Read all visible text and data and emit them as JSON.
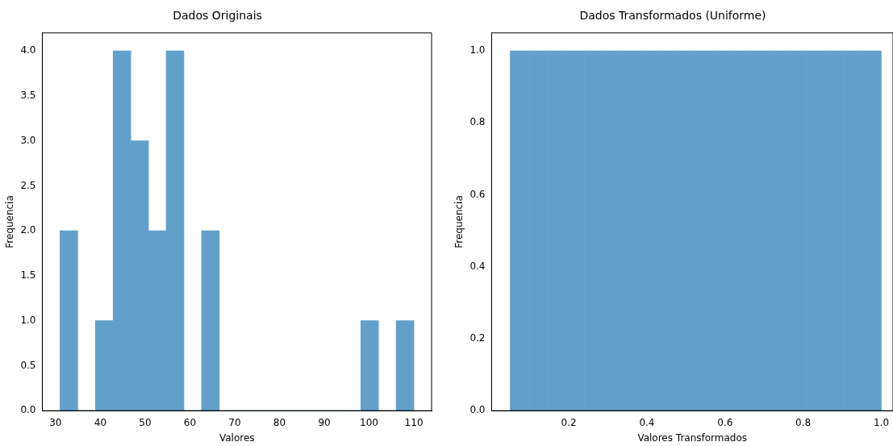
{
  "chart_data": [
    {
      "type": "histogram",
      "title": "Dados Originais",
      "xlabel": "Valores",
      "ylabel": "Frequencia",
      "color": "#62a0ca",
      "bins": [
        31,
        34.95,
        38.9,
        42.85,
        46.8,
        50.75,
        54.7,
        58.65,
        62.6,
        66.55,
        70.5,
        74.45,
        78.4,
        82.35,
        86.3,
        90.25,
        94.2,
        98.15,
        102.1,
        106.05,
        110
      ],
      "values": [
        2,
        0,
        1,
        4,
        3,
        2,
        4,
        0,
        2,
        0,
        0,
        0,
        0,
        0,
        0,
        0,
        0,
        1,
        0,
        1
      ],
      "xlim": [
        27.05,
        113.95
      ],
      "xticks": [
        30,
        40,
        50,
        60,
        70,
        80,
        90,
        100,
        110
      ],
      "ylim": [
        0,
        4.2
      ],
      "yticks": [
        {
          "value": 0,
          "label": "0.0"
        },
        {
          "value": 0.5,
          "label": "0.5"
        },
        {
          "value": 1,
          "label": "1.0"
        },
        {
          "value": 1.5,
          "label": "1.5"
        },
        {
          "value": 2,
          "label": "2.0"
        },
        {
          "value": 2.5,
          "label": "2.5"
        },
        {
          "value": 3,
          "label": "3.0"
        },
        {
          "value": 3.5,
          "label": "3.5"
        },
        {
          "value": 4,
          "label": "4.0"
        }
      ]
    },
    {
      "type": "histogram",
      "title": "Dados Transformados (Uniforme)",
      "xlabel": "Valores Transformados",
      "ylabel": "Frequencia",
      "color": "#62a0ca",
      "bins": [
        0.05,
        0.0975,
        0.145,
        0.1925,
        0.24,
        0.2875,
        0.335,
        0.3825,
        0.43,
        0.4775,
        0.525,
        0.5725,
        0.62,
        0.6675,
        0.715,
        0.7625,
        0.81,
        0.8575,
        0.905,
        0.9525,
        1.0
      ],
      "values": [
        1,
        1,
        1,
        1,
        1,
        1,
        1,
        1,
        1,
        1,
        1,
        1,
        1,
        1,
        1,
        1,
        1,
        1,
        1,
        1
      ],
      "xlim": [
        0.0025,
        1.03
      ],
      "xticks": [
        0.2,
        0.4,
        0.6,
        0.8,
        {
          "value": 1,
          "label": "1.0"
        }
      ],
      "ylim": [
        0,
        1.05
      ],
      "yticks": [
        {
          "value": 0,
          "label": "0.0"
        },
        {
          "value": 0.2,
          "label": "0.2"
        },
        {
          "value": 0.4,
          "label": "0.4"
        },
        {
          "value": 0.6,
          "label": "0.6"
        },
        {
          "value": 0.8,
          "label": "0.8"
        },
        {
          "value": 1,
          "label": "1.0"
        }
      ]
    }
  ]
}
